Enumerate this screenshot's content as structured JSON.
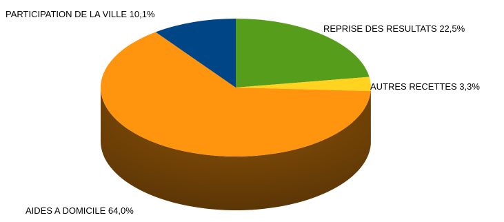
{
  "chart_data": {
    "type": "pie",
    "style": "3d",
    "slices": [
      {
        "label": "REPRISE DES RESULTATS 22,5%",
        "value": 22.5,
        "color": "#579d1c"
      },
      {
        "label": "AUTRES RECETTES 3,3%",
        "value": 3.3,
        "color": "#ffd320"
      },
      {
        "label": "AIDES A DOMICILE 64,0%",
        "value": 64.0,
        "color": "#ff950e"
      },
      {
        "label": "PARTICIPATION DE LA VILLE 10,1%",
        "value": 10.1,
        "color": "#004586"
      }
    ],
    "start_angle_deg": 0,
    "direction": "clockwise",
    "legend": "none"
  }
}
